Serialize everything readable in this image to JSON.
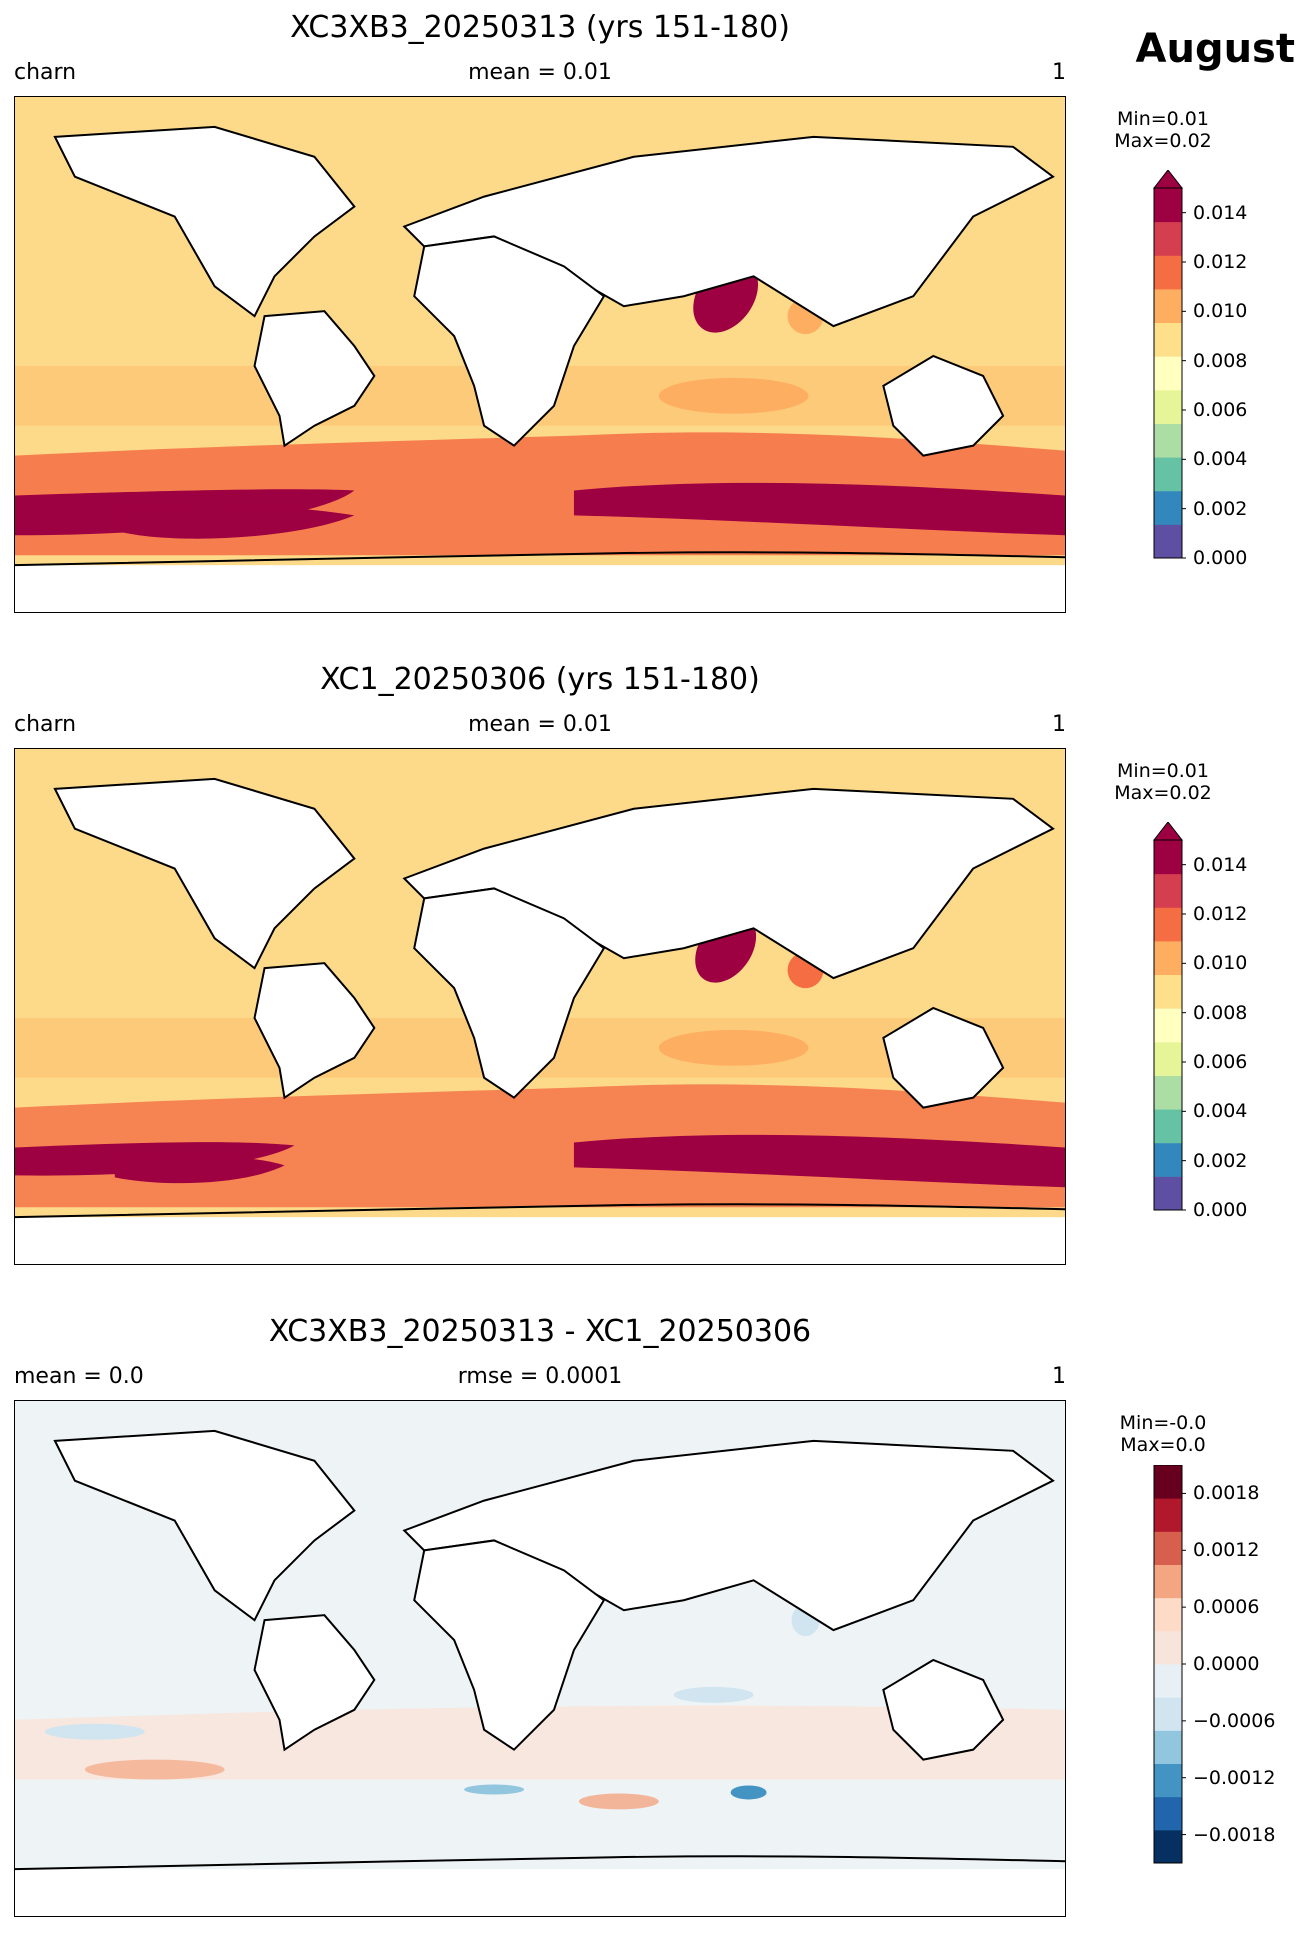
{
  "figure": {
    "month": "August"
  },
  "panels": [
    {
      "title": "XC3XB3_20250313 (yrs 151-180)",
      "left": "charn",
      "center": "mean = 0.01",
      "right": "1",
      "minmax": [
        "Min=0.01",
        "Max=0.02"
      ],
      "colorbar": {
        "extend": "max",
        "ticks": [
          "0.014",
          "0.012",
          "0.010",
          "0.008",
          "0.006",
          "0.004",
          "0.002",
          "0.000"
        ],
        "colors": [
          "#5e4fa2",
          "#3288bd",
          "#66c2a5",
          "#abdda4",
          "#e6f598",
          "#ffffbf",
          "#fee08b",
          "#fdae61",
          "#f46d43",
          "#d53e4f",
          "#9e0142"
        ]
      }
    },
    {
      "title": "XC1_20250306 (yrs 151-180)",
      "left": "charn",
      "center": "mean = 0.01",
      "right": "1",
      "minmax": [
        "Min=0.01",
        "Max=0.02"
      ],
      "colorbar": {
        "extend": "max",
        "ticks": [
          "0.014",
          "0.012",
          "0.010",
          "0.008",
          "0.006",
          "0.004",
          "0.002",
          "0.000"
        ],
        "colors": [
          "#5e4fa2",
          "#3288bd",
          "#66c2a5",
          "#abdda4",
          "#e6f598",
          "#ffffbf",
          "#fee08b",
          "#fdae61",
          "#f46d43",
          "#d53e4f",
          "#9e0142"
        ]
      }
    },
    {
      "title": "XC3XB3_20250313 - XC1_20250306",
      "left": "mean = 0.0",
      "center": "rmse = 0.0001",
      "right": "1",
      "minmax": [
        "Min=-0.0",
        "Max=0.0"
      ],
      "colorbar": {
        "extend": "none",
        "ticks": [
          "0.0018",
          "0.0012",
          "0.0006",
          "0.0000",
          "−0.0006",
          "−0.0012",
          "−0.0018"
        ],
        "colors": [
          "#053061",
          "#2166ac",
          "#4393c3",
          "#92c5de",
          "#d1e5f0",
          "#e8f0f5",
          "#f7e4da",
          "#fddbc7",
          "#f4a582",
          "#d6604d",
          "#b2182b",
          "#67001f"
        ]
      }
    }
  ],
  "chart_data": [
    {
      "type": "heatmap",
      "title": "XC3XB3_20250313 (yrs 151-180)",
      "variable": "charn",
      "mean": 0.01,
      "min": 0.01,
      "max": 0.02,
      "colorbar_range": [
        0.0,
        0.015
      ],
      "colorbar_ticks": [
        0.0,
        0.002,
        0.004,
        0.006,
        0.008,
        0.01,
        0.012,
        0.014
      ]
    },
    {
      "type": "heatmap",
      "title": "XC1_20250306 (yrs 151-180)",
      "variable": "charn",
      "mean": 0.01,
      "min": 0.01,
      "max": 0.02,
      "colorbar_range": [
        0.0,
        0.015
      ],
      "colorbar_ticks": [
        0.0,
        0.002,
        0.004,
        0.006,
        0.008,
        0.01,
        0.012,
        0.014
      ]
    },
    {
      "type": "heatmap",
      "title": "XC3XB3_20250313 - XC1_20250306",
      "mean": 0.0,
      "rmse": 0.0001,
      "min": -0.0,
      "max": 0.0,
      "colorbar_range": [
        -0.0021,
        0.0021
      ],
      "colorbar_ticks": [
        -0.0018,
        -0.0012,
        -0.0006,
        0.0,
        0.0006,
        0.0012,
        0.0018
      ]
    }
  ]
}
